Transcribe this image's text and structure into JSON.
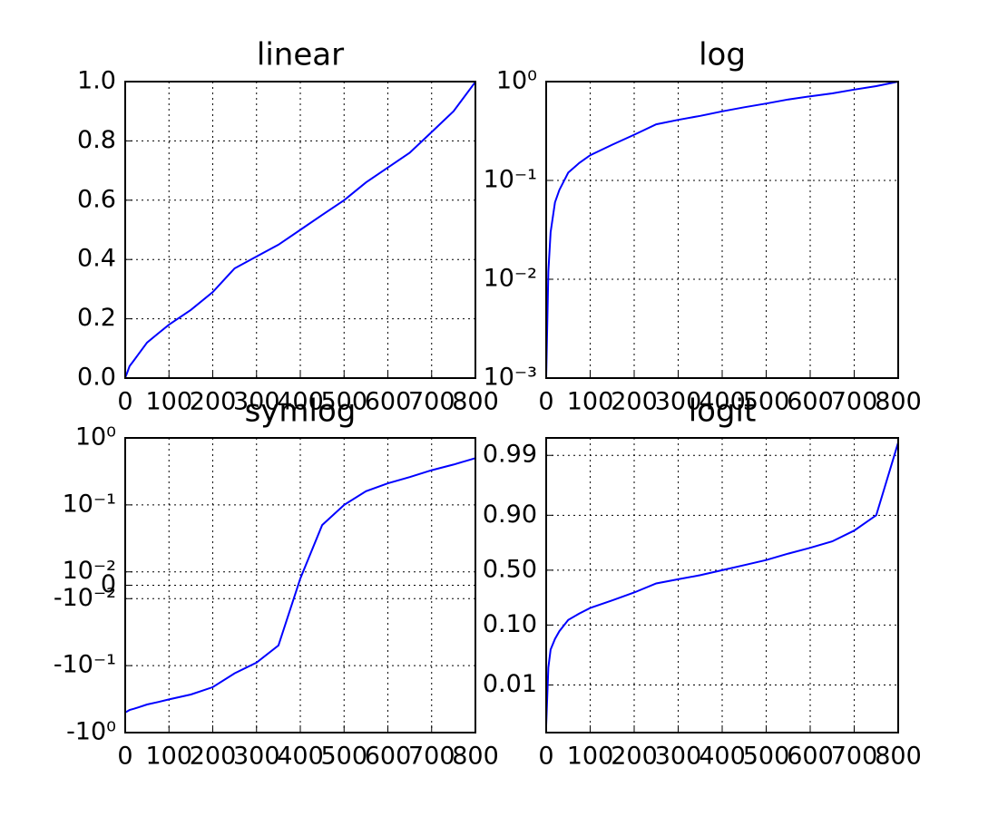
{
  "chart_data": [
    {
      "type": "line",
      "title": "linear",
      "yscale": "linear",
      "grid": true,
      "x": [
        0,
        5,
        10,
        20,
        30,
        50,
        75,
        100,
        150,
        200,
        250,
        300,
        350,
        400,
        450,
        500,
        550,
        600,
        650,
        700,
        750,
        800
      ],
      "series": [
        {
          "color": "#0000ff",
          "values": [
            0.001,
            0.02,
            0.04,
            0.06,
            0.08,
            0.12,
            0.15,
            0.18,
            0.23,
            0.29,
            0.37,
            0.41,
            0.45,
            0.5,
            0.55,
            0.6,
            0.66,
            0.71,
            0.76,
            0.83,
            0.9,
            0.999
          ]
        }
      ],
      "xlim": [
        0,
        800
      ],
      "xticks": [
        0,
        100,
        200,
        300,
        400,
        500,
        600,
        700,
        800
      ],
      "ylim": [
        0,
        1
      ],
      "yticks": [
        {
          "value": 0,
          "label": "0.0"
        },
        0.2,
        0.4,
        0.6,
        0.8,
        {
          "value": 1,
          "label": "1.0"
        }
      ]
    },
    {
      "type": "line",
      "title": "log",
      "yscale": "log",
      "grid": true,
      "x": [
        0,
        5,
        10,
        20,
        30,
        50,
        75,
        100,
        150,
        200,
        250,
        300,
        350,
        400,
        450,
        500,
        550,
        600,
        650,
        700,
        750,
        800
      ],
      "series": [
        {
          "color": "#0000ff",
          "values": [
            0.001,
            0.012,
            0.03,
            0.06,
            0.08,
            0.12,
            0.15,
            0.18,
            0.23,
            0.29,
            0.37,
            0.41,
            0.45,
            0.5,
            0.55,
            0.6,
            0.66,
            0.71,
            0.76,
            0.83,
            0.9,
            0.999
          ]
        }
      ],
      "xlim": [
        0,
        800
      ],
      "xticks": [
        0,
        100,
        200,
        300,
        400,
        500,
        600,
        700,
        800
      ],
      "ylim": [
        0.001,
        1
      ],
      "yticks": [
        {
          "value": 0.001,
          "label": "10⁻³"
        },
        {
          "value": 0.01,
          "label": "10⁻²"
        },
        {
          "value": 0.1,
          "label": "10⁻¹"
        },
        {
          "value": 1,
          "label": "10⁰"
        }
      ]
    },
    {
      "type": "line",
      "title": "symlog",
      "yscale": "symlog",
      "linthresh": 0.01,
      "grid": true,
      "x": [
        0,
        5,
        10,
        20,
        30,
        50,
        75,
        100,
        150,
        200,
        250,
        300,
        350,
        400,
        450,
        500,
        550,
        600,
        650,
        700,
        750,
        800
      ],
      "series": [
        {
          "color": "#0000ff",
          "values": [
            -0.499,
            -0.48,
            -0.46,
            -0.44,
            -0.42,
            -0.38,
            -0.35,
            -0.32,
            -0.27,
            -0.21,
            -0.13,
            -0.09,
            -0.05,
            0.005,
            0.05,
            0.1,
            0.16,
            0.21,
            0.26,
            0.33,
            0.4,
            0.499
          ]
        }
      ],
      "xlim": [
        0,
        800
      ],
      "xticks": [
        0,
        100,
        200,
        300,
        400,
        500,
        600,
        700,
        800
      ],
      "ylim": [
        -1,
        1
      ],
      "yticks": [
        {
          "value": -1,
          "label": "-10⁰"
        },
        {
          "value": -0.1,
          "label": "-10⁻¹"
        },
        {
          "value": -0.01,
          "label": "-10⁻²"
        },
        0,
        {
          "value": 0.01,
          "label": "10⁻²"
        },
        {
          "value": 0.1,
          "label": "10⁻¹"
        },
        {
          "value": 1,
          "label": "10⁰"
        }
      ]
    },
    {
      "type": "line",
      "title": "logit",
      "yscale": "logit",
      "grid": true,
      "x": [
        0,
        5,
        10,
        20,
        30,
        50,
        75,
        100,
        150,
        200,
        250,
        300,
        350,
        400,
        450,
        500,
        550,
        600,
        650,
        700,
        750,
        800
      ],
      "series": [
        {
          "color": "#0000ff",
          "values": [
            0.002,
            0.02,
            0.04,
            0.06,
            0.08,
            0.12,
            0.15,
            0.18,
            0.23,
            0.29,
            0.37,
            0.41,
            0.45,
            0.5,
            0.55,
            0.6,
            0.66,
            0.71,
            0.76,
            0.83,
            0.9,
            0.994
          ]
        }
      ],
      "xlim": [
        0,
        800
      ],
      "xticks": [
        0,
        100,
        200,
        300,
        400,
        500,
        600,
        700,
        800
      ],
      "ylim": [
        0.0015,
        0.995
      ],
      "yticks": [
        0.01,
        {
          "value": 0.1,
          "label": "0.10"
        },
        {
          "value": 0.5,
          "label": "0.50"
        },
        {
          "value": 0.9,
          "label": "0.90"
        },
        0.99
      ]
    }
  ]
}
